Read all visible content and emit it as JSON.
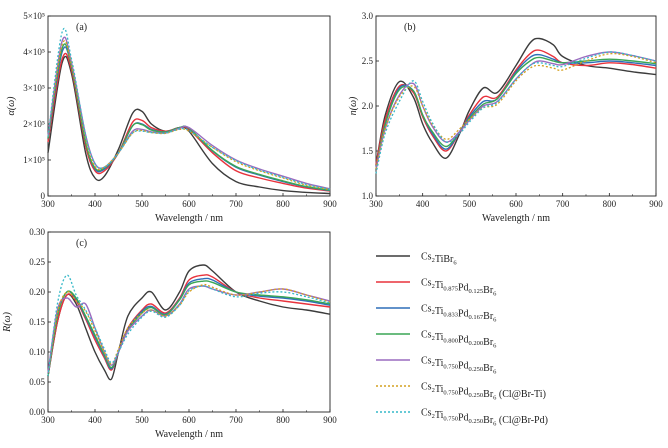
{
  "legend": [
    {
      "id": "s1",
      "parts": [
        [
          "Cs",
          "2"
        ],
        [
          "TiBr",
          "6"
        ]
      ]
    },
    {
      "id": "s2",
      "parts": [
        [
          "Cs",
          "2"
        ],
        [
          "Ti",
          "0.875"
        ],
        [
          "Pd",
          "0.125"
        ],
        [
          "Br",
          "6"
        ]
      ]
    },
    {
      "id": "s3",
      "parts": [
        [
          "Cs",
          "2"
        ],
        [
          "Ti",
          "0.833"
        ],
        [
          "Pd",
          "0.167"
        ],
        [
          "Br",
          "6"
        ]
      ]
    },
    {
      "id": "s4",
      "parts": [
        [
          "Cs",
          "2"
        ],
        [
          "Ti",
          "0.800"
        ],
        [
          "Pd",
          "0.200"
        ],
        [
          "Br",
          "6"
        ]
      ]
    },
    {
      "id": "s5",
      "parts": [
        [
          "Cs",
          "2"
        ],
        [
          "Ti",
          "0.750"
        ],
        [
          "Pd",
          "0.250"
        ],
        [
          "Br",
          "6"
        ]
      ]
    },
    {
      "id": "s6",
      "parts": [
        [
          "Cs",
          "2"
        ],
        [
          "Ti",
          "0.750"
        ],
        [
          "Pd",
          "0.250"
        ],
        [
          "Br",
          "6",
          " (Cl@Br-Ti)"
        ]
      ]
    },
    {
      "id": "s7",
      "parts": [
        [
          "Cs",
          "2"
        ],
        [
          "Ti",
          "0.750"
        ],
        [
          "Pd",
          "0.250"
        ],
        [
          "Br",
          "6",
          " (Cl@Br-Pd)"
        ]
      ]
    }
  ],
  "styles": {
    "s1": {
      "color": "#3c3c3c",
      "dash": "solid"
    },
    "s2": {
      "color": "#e8323c",
      "dash": "solid"
    },
    "s3": {
      "color": "#2f6fb8",
      "dash": "solid"
    },
    "s4": {
      "color": "#3aa655",
      "dash": "solid"
    },
    "s5": {
      "color": "#9a6bbf",
      "dash": "solid"
    },
    "s6": {
      "color": "#d4a020",
      "dash": "dotted"
    },
    "s7": {
      "color": "#35b8c8",
      "dash": "dotted"
    }
  },
  "chart_data": [
    {
      "panel": "(a)",
      "type": "line",
      "xlabel": "Wavelength / nm",
      "ylabel": "α(ω)",
      "xlim": [
        300,
        900
      ],
      "ylim": [
        0,
        500000
      ],
      "xticks": [
        "300",
        "400",
        "500",
        "600",
        "700",
        "800",
        "900"
      ],
      "yticks": [
        "0",
        "1×10⁵",
        "2×10⁵",
        "3×10⁵",
        "4×10⁵",
        "5×10⁵"
      ],
      "x": [
        300,
        330,
        350,
        380,
        400,
        420,
        450,
        480,
        500,
        520,
        550,
        580,
        600,
        650,
        700,
        750,
        800,
        850,
        900
      ],
      "series": [
        {
          "id": "s1",
          "values": [
            120000,
            370000,
            340000,
            120000,
            50000,
            55000,
            130000,
            230000,
            235000,
            200000,
            180000,
            190000,
            180000,
            90000,
            40000,
            25000,
            15000,
            10000,
            7000
          ]
        },
        {
          "id": "s2",
          "values": [
            150000,
            380000,
            350000,
            140000,
            70000,
            70000,
            120000,
            205000,
            210000,
            190000,
            180000,
            190000,
            185000,
            120000,
            70000,
            50000,
            35000,
            22000,
            14000
          ]
        },
        {
          "id": "s3",
          "values": [
            160000,
            400000,
            360000,
            150000,
            75000,
            75000,
            120000,
            195000,
            200000,
            185000,
            178000,
            190000,
            188000,
            125000,
            80000,
            58000,
            40000,
            25000,
            15000
          ]
        },
        {
          "id": "s4",
          "values": [
            160000,
            410000,
            360000,
            150000,
            78000,
            78000,
            120000,
            195000,
            198000,
            183000,
            178000,
            190000,
            188000,
            126000,
            82000,
            60000,
            42000,
            26000,
            16000
          ]
        },
        {
          "id": "s5",
          "values": [
            165000,
            430000,
            370000,
            170000,
            90000,
            80000,
            120000,
            180000,
            185000,
            178000,
            175000,
            188000,
            190000,
            140000,
            100000,
            75000,
            55000,
            35000,
            20000
          ]
        },
        {
          "id": "s6",
          "values": [
            165000,
            420000,
            365000,
            160000,
            82000,
            80000,
            120000,
            175000,
            182000,
            176000,
            174000,
            185000,
            180000,
            135000,
            95000,
            70000,
            50000,
            30000,
            18000
          ]
        },
        {
          "id": "s7",
          "values": [
            165000,
            455000,
            380000,
            170000,
            90000,
            80000,
            120000,
            175000,
            180000,
            176000,
            175000,
            186000,
            182000,
            135000,
            98000,
            72000,
            52000,
            32000,
            19000
          ]
        }
      ]
    },
    {
      "panel": "(b)",
      "type": "line",
      "xlabel": "Wavelength / nm",
      "ylabel": "n(ω)",
      "xlim": [
        300,
        900
      ],
      "ylim": [
        1.0,
        3.0
      ],
      "xticks": [
        "300",
        "400",
        "500",
        "600",
        "700",
        "800",
        "900"
      ],
      "yticks": [
        "1.0",
        "1.5",
        "2.0",
        "2.5",
        "3.0"
      ],
      "x": [
        300,
        320,
        350,
        380,
        400,
        420,
        450,
        480,
        500,
        530,
        560,
        600,
        630,
        650,
        680,
        700,
        750,
        800,
        850,
        900
      ],
      "series": [
        {
          "id": "s1",
          "values": [
            1.35,
            1.9,
            2.27,
            2.1,
            1.8,
            1.6,
            1.42,
            1.7,
            1.95,
            2.2,
            2.15,
            2.45,
            2.7,
            2.75,
            2.68,
            2.55,
            2.45,
            2.42,
            2.38,
            2.35
          ]
        },
        {
          "id": "s2",
          "values": [
            1.35,
            1.85,
            2.22,
            2.15,
            1.88,
            1.68,
            1.5,
            1.72,
            1.9,
            2.1,
            2.1,
            2.4,
            2.58,
            2.62,
            2.55,
            2.48,
            2.45,
            2.48,
            2.46,
            2.42
          ]
        },
        {
          "id": "s3",
          "values": [
            1.3,
            1.8,
            2.2,
            2.17,
            1.9,
            1.7,
            1.52,
            1.72,
            1.88,
            2.05,
            2.08,
            2.38,
            2.54,
            2.57,
            2.52,
            2.48,
            2.48,
            2.5,
            2.48,
            2.45
          ]
        },
        {
          "id": "s4",
          "values": [
            1.3,
            1.8,
            2.18,
            2.17,
            1.9,
            1.72,
            1.55,
            1.72,
            1.86,
            2.02,
            2.08,
            2.36,
            2.5,
            2.54,
            2.5,
            2.48,
            2.5,
            2.52,
            2.5,
            2.47
          ]
        },
        {
          "id": "s5",
          "values": [
            1.3,
            1.75,
            2.12,
            2.25,
            2.0,
            1.78,
            1.6,
            1.72,
            1.84,
            2.0,
            2.05,
            2.3,
            2.45,
            2.5,
            2.47,
            2.46,
            2.55,
            2.6,
            2.56,
            2.5
          ]
        },
        {
          "id": "s6",
          "values": [
            1.3,
            1.75,
            2.1,
            2.22,
            2.0,
            1.8,
            1.63,
            1.75,
            1.85,
            1.98,
            2.02,
            2.28,
            2.42,
            2.45,
            2.42,
            2.4,
            2.5,
            2.58,
            2.55,
            2.48
          ]
        },
        {
          "id": "s7",
          "values": [
            1.25,
            1.7,
            2.05,
            2.28,
            2.05,
            1.82,
            1.6,
            1.7,
            1.82,
            1.98,
            2.04,
            2.3,
            2.45,
            2.48,
            2.45,
            2.44,
            2.53,
            2.6,
            2.56,
            2.5
          ]
        }
      ]
    },
    {
      "panel": "(c)",
      "type": "line",
      "xlabel": "Wavelength / nm",
      "ylabel": "R(ω)",
      "xlim": [
        300,
        900
      ],
      "ylim": [
        0,
        0.3
      ],
      "xticks": [
        "300",
        "400",
        "500",
        "600",
        "700",
        "800",
        "900"
      ],
      "yticks": [
        "0.00",
        "0.05",
        "0.10",
        "0.15",
        "0.20",
        "0.25",
        "0.30"
      ],
      "x": [
        300,
        320,
        340,
        360,
        380,
        400,
        420,
        435,
        450,
        470,
        500,
        520,
        550,
        580,
        600,
        630,
        650,
        700,
        750,
        800,
        850,
        900
      ],
      "series": [
        {
          "id": "s1",
          "values": [
            0.06,
            0.15,
            0.195,
            0.18,
            0.14,
            0.1,
            0.07,
            0.055,
            0.1,
            0.16,
            0.19,
            0.2,
            0.17,
            0.2,
            0.235,
            0.245,
            0.235,
            0.2,
            0.185,
            0.175,
            0.17,
            0.163
          ]
        },
        {
          "id": "s2",
          "values": [
            0.06,
            0.15,
            0.195,
            0.185,
            0.155,
            0.12,
            0.09,
            0.07,
            0.1,
            0.14,
            0.17,
            0.18,
            0.165,
            0.19,
            0.22,
            0.228,
            0.225,
            0.2,
            0.19,
            0.185,
            0.18,
            0.175
          ]
        },
        {
          "id": "s3",
          "values": [
            0.06,
            0.16,
            0.2,
            0.188,
            0.158,
            0.125,
            0.093,
            0.072,
            0.1,
            0.138,
            0.168,
            0.176,
            0.163,
            0.188,
            0.215,
            0.222,
            0.22,
            0.2,
            0.193,
            0.19,
            0.185,
            0.178
          ]
        },
        {
          "id": "s4",
          "values": [
            0.06,
            0.16,
            0.2,
            0.19,
            0.16,
            0.128,
            0.095,
            0.074,
            0.1,
            0.136,
            0.165,
            0.174,
            0.162,
            0.187,
            0.212,
            0.218,
            0.216,
            0.2,
            0.195,
            0.192,
            0.187,
            0.18
          ]
        },
        {
          "id": "s5",
          "values": [
            0.065,
            0.17,
            0.19,
            0.175,
            0.18,
            0.14,
            0.1,
            0.078,
            0.1,
            0.135,
            0.16,
            0.17,
            0.16,
            0.18,
            0.205,
            0.21,
            0.205,
            0.195,
            0.2,
            0.205,
            0.195,
            0.185
          ]
        },
        {
          "id": "s6",
          "values": [
            0.06,
            0.165,
            0.2,
            0.185,
            0.168,
            0.135,
            0.1,
            0.08,
            0.105,
            0.14,
            0.165,
            0.17,
            0.16,
            0.178,
            0.2,
            0.212,
            0.208,
            0.195,
            0.2,
            0.205,
            0.195,
            0.183
          ]
        },
        {
          "id": "s7",
          "values": [
            0.06,
            0.18,
            0.228,
            0.195,
            0.17,
            0.14,
            0.105,
            0.082,
            0.1,
            0.13,
            0.158,
            0.168,
            0.158,
            0.178,
            0.202,
            0.21,
            0.205,
            0.192,
            0.198,
            0.2,
            0.192,
            0.182
          ]
        }
      ]
    }
  ]
}
